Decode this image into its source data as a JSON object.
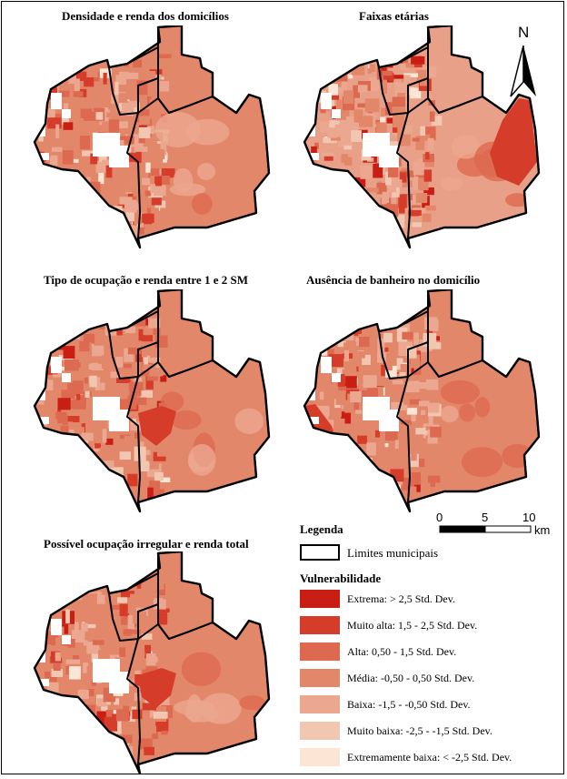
{
  "maps": [
    {
      "title": "Densidade e renda dos domicílios",
      "east_hotspot": false,
      "sw_hotspot": false,
      "center_hotspot": false,
      "east_color": "#e3876b"
    },
    {
      "title": "Faixas etárias",
      "east_hotspot": true,
      "sw_hotspot": false,
      "center_hotspot": false,
      "east_color": "#e9a088"
    },
    {
      "title": "Tipo de ocupação e renda entre 1 e 2 SM",
      "east_hotspot": false,
      "sw_hotspot": false,
      "center_hotspot": true,
      "east_color": "#e3876b"
    },
    {
      "title": "Ausência de banheiro no domicílio",
      "east_hotspot": false,
      "sw_hotspot": true,
      "center_hotspot": false,
      "east_color": "#e3876b"
    },
    {
      "title": "Possível ocupação irregular e renda total",
      "east_hotspot": false,
      "sw_hotspot": false,
      "center_hotspot": true,
      "east_color": "#e3876b"
    }
  ],
  "north_arrow": {
    "label": "N"
  },
  "scale_bar": {
    "ticks": [
      "0",
      "5",
      "10"
    ],
    "unit": "km"
  },
  "legend": {
    "title": "Legenda",
    "boundary_label": "Limites municipais",
    "vulnerability_title": "Vulnerabilidade",
    "classes": [
      {
        "label": "Extrema: > 2,5 Std. Dev.",
        "color": "#c81e14"
      },
      {
        "label": "Muito alta: 1,5 - 2,5 Std. Dev.",
        "color": "#d63c2a"
      },
      {
        "label": "Alta: 0,50 - 1,5 Std. Dev.",
        "color": "#dd6a50"
      },
      {
        "label": "Média: -0,50 - 0,50 Std. Dev.",
        "color": "#e3876b"
      },
      {
        "label": "Baixa: -1,5 - -0,50 Std. Dev.",
        "color": "#eba78f"
      },
      {
        "label": "Muito baixa: -2,5 - -1,5 Std. Dev.",
        "color": "#f2c7b2"
      },
      {
        "label": "Extremamente baixa: < -2,5 Std. Dev.",
        "color": "#fbe6d6"
      }
    ]
  }
}
